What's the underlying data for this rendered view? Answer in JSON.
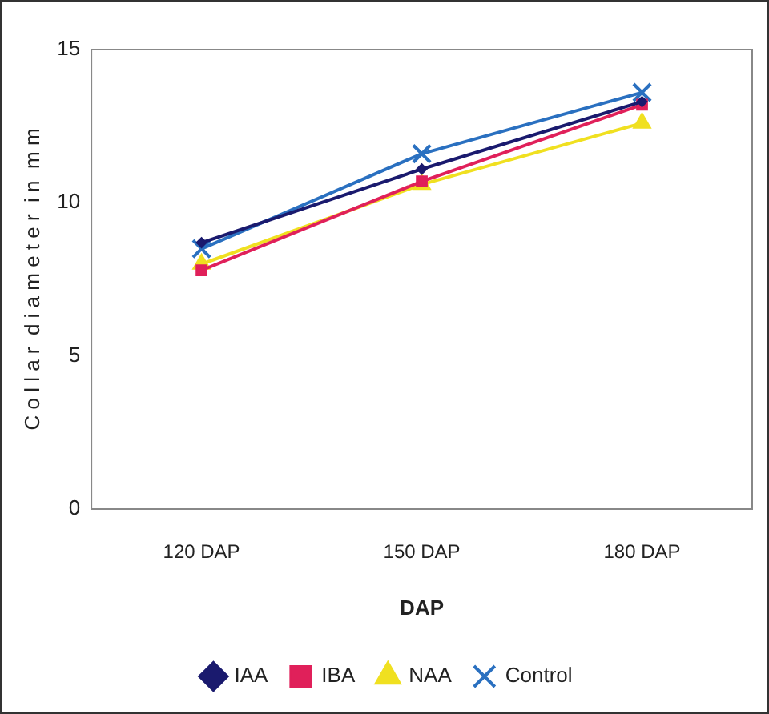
{
  "chart_data": {
    "type": "line",
    "xlabel": "DAP",
    "ylabel": "C o l l a r  d i a m e t e r  i n  m m",
    "categories": [
      "120 DAP",
      "150 DAP",
      "180 DAP"
    ],
    "series": [
      {
        "name": "IAA",
        "color": "#1a1a6e",
        "marker": "diamond",
        "values": [
          8.7,
          11.1,
          13.3
        ]
      },
      {
        "name": "IBA",
        "color": "#e0205a",
        "marker": "square",
        "values": [
          7.8,
          10.7,
          13.2
        ]
      },
      {
        "name": "NAA",
        "color": "#f0e020",
        "marker": "triangle",
        "values": [
          8.0,
          10.6,
          12.6
        ]
      },
      {
        "name": "Control",
        "color": "#2a70c0",
        "marker": "cross",
        "values": [
          8.5,
          11.6,
          13.6
        ]
      }
    ],
    "ylim": [
      0,
      15
    ],
    "yticks": [
      0,
      5,
      10,
      15
    ],
    "grid": false,
    "legend": "bottom",
    "line_style": "solid"
  }
}
